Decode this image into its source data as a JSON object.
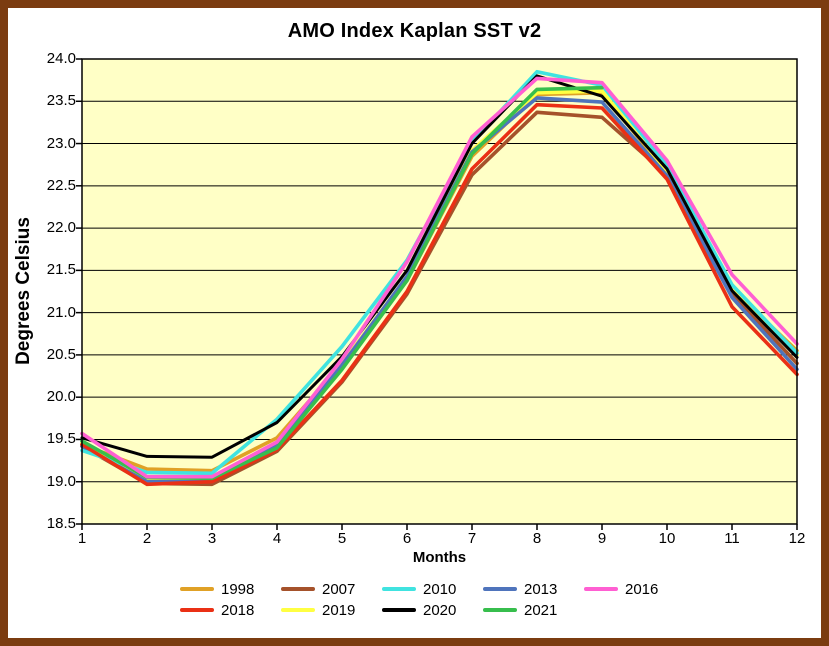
{
  "page": {
    "title": "AMO Index Kaplan SST v2"
  },
  "chart_data": {
    "type": "line",
    "title": "AMO Index Kaplan SST v2",
    "xlabel": "Months",
    "ylabel": "Degrees Celsius",
    "xlim": [
      1,
      12
    ],
    "ylim": [
      18.5,
      24.0
    ],
    "xticks": [
      "1",
      "2",
      "3",
      "4",
      "5",
      "6",
      "7",
      "8",
      "9",
      "10",
      "11",
      "12"
    ],
    "yticks": [
      "18.5",
      "19.0",
      "19.5",
      "20.0",
      "20.5",
      "21.0",
      "21.5",
      "22.0",
      "22.5",
      "23.0",
      "23.5",
      "24.0"
    ],
    "grid": "horizontal",
    "legend_position": "bottom",
    "legend_rows": [
      [
        "1998",
        "2007",
        "2010",
        "2013",
        "2016"
      ],
      [
        "2018",
        "2019",
        "2020",
        "2021"
      ]
    ],
    "plot_bg_color": "#ffffc6",
    "frame_color": "#7b3c10",
    "axis_color": "#000000",
    "x": [
      1,
      2,
      3,
      4,
      5,
      6,
      7,
      8,
      9,
      10,
      11,
      12
    ],
    "series": [
      {
        "name": "1998",
        "color": "#e0a126",
        "values": [
          19.44,
          19.15,
          19.13,
          19.52,
          20.4,
          21.38,
          22.85,
          23.58,
          23.6,
          22.65,
          21.28,
          20.55
        ]
      },
      {
        "name": "2007",
        "color": "#a5522b",
        "values": [
          19.42,
          18.98,
          18.97,
          19.36,
          20.18,
          21.22,
          22.63,
          23.37,
          23.31,
          22.63,
          21.22,
          20.4
        ]
      },
      {
        "name": "2010",
        "color": "#40e3e0",
        "values": [
          19.37,
          19.11,
          19.1,
          19.74,
          20.6,
          21.62,
          23.02,
          23.85,
          23.69,
          22.74,
          21.33,
          20.52
        ]
      },
      {
        "name": "2013",
        "color": "#4f74bc",
        "values": [
          19.42,
          19.0,
          19.0,
          19.43,
          20.38,
          21.43,
          22.9,
          23.54,
          23.49,
          22.62,
          21.18,
          20.33
        ]
      },
      {
        "name": "2016",
        "color": "#ff5fd2",
        "values": [
          19.57,
          19.06,
          19.06,
          19.47,
          20.45,
          21.6,
          23.08,
          23.77,
          23.72,
          22.8,
          21.45,
          20.63
        ]
      },
      {
        "name": "2018",
        "color": "#ea3015",
        "values": [
          19.44,
          18.97,
          19.0,
          19.38,
          20.2,
          21.25,
          22.7,
          23.46,
          23.42,
          22.58,
          21.07,
          20.27
        ]
      },
      {
        "name": "2019",
        "color": "#ffff42",
        "values": [
          19.46,
          19.03,
          19.02,
          19.45,
          20.4,
          21.42,
          22.92,
          23.6,
          23.62,
          22.67,
          21.3,
          20.5
        ]
      },
      {
        "name": "2020",
        "color": "#000000",
        "values": [
          19.52,
          19.3,
          19.29,
          19.7,
          20.48,
          21.5,
          23.0,
          23.8,
          23.56,
          22.7,
          21.26,
          20.47
        ]
      },
      {
        "name": "2021",
        "color": "#37be4d",
        "values": [
          19.48,
          19.05,
          19.04,
          19.4,
          20.33,
          21.38,
          22.88,
          23.64,
          23.66,
          null,
          null,
          null
        ]
      }
    ],
    "draw_order": [
      "2007",
      "1998",
      "2019",
      "2013",
      "2010",
      "2018",
      "2020",
      "2021",
      "2016"
    ]
  }
}
